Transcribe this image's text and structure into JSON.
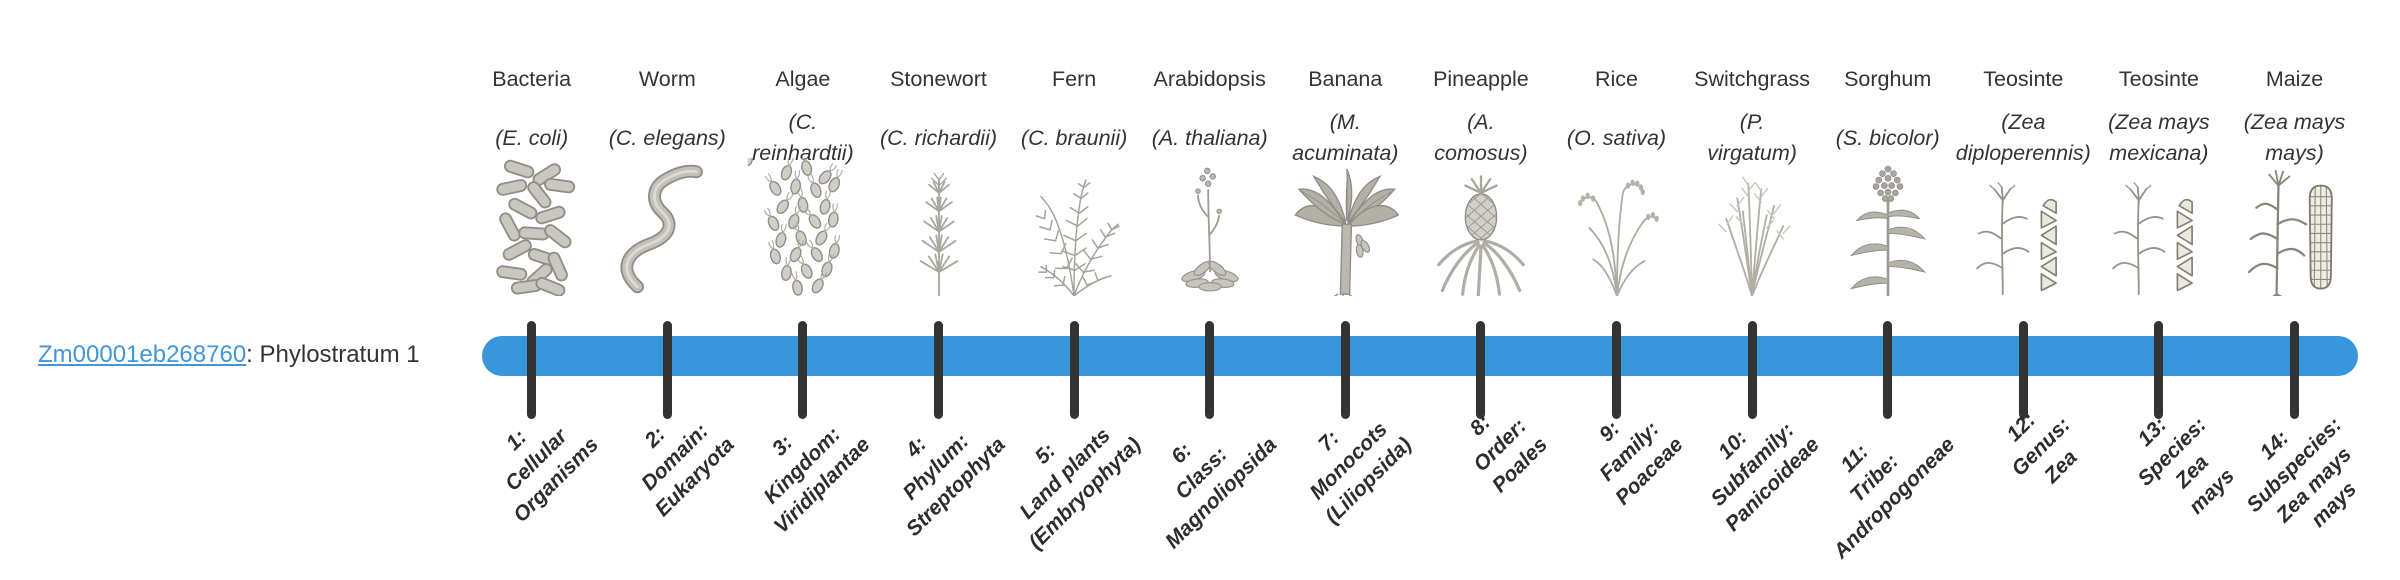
{
  "gene": {
    "id": "Zm00001eb268760",
    "suffix": ": Phylostratum 1"
  },
  "colors": {
    "bar_blue": "#3897db",
    "tick_dark": "#333333",
    "link_blue": "#4196d8",
    "text": "#333333"
  },
  "timeline": {
    "taxa": [
      {
        "common": "Bacteria",
        "sci": "(E. coli)",
        "rank_label": "1:\nCellular\nOrganisms",
        "icon": "bacteria"
      },
      {
        "common": "Worm",
        "sci": "(C. elegans)",
        "rank_label": "2:\nDomain:\nEukaryota",
        "icon": "worm"
      },
      {
        "common": "Algae",
        "sci": "(C.\nreinhardtii)",
        "rank_label": "3:\nKingdom:\nViridiplantae",
        "icon": "algae"
      },
      {
        "common": "Stonewort",
        "sci": "(C. richardii)",
        "rank_label": "4:\nPhylum:\nStreptophyta",
        "icon": "stonewort"
      },
      {
        "common": "Fern",
        "sci": "(C. braunii)",
        "rank_label": "5:\nLand plants\n(Embryophyta)",
        "icon": "fern"
      },
      {
        "common": "Arabidopsis",
        "sci": "(A. thaliana)",
        "rank_label": "6:\nClass:\nMagnoliopsida",
        "icon": "arabidopsis"
      },
      {
        "common": "Banana",
        "sci": "(M.\nacuminata)",
        "rank_label": "7:\nMonocots\n(Liliopsida)",
        "icon": "banana"
      },
      {
        "common": "Pineapple",
        "sci": "(A.\ncomosus)",
        "rank_label": "8:\nOrder:\nPoales",
        "icon": "pineapple"
      },
      {
        "common": "Rice",
        "sci": "(O. sativa)",
        "rank_label": "9:\nFamily:\nPoaceae",
        "icon": "rice"
      },
      {
        "common": "Switchgrass",
        "sci": "(P.\nvirgatum)",
        "rank_label": "10:\nSubfamily:\nPanicoideae",
        "icon": "switchgrass"
      },
      {
        "common": "Sorghum",
        "sci": "(S. bicolor)",
        "rank_label": "11:\nTribe:\nAndropogoneae",
        "icon": "sorghum"
      },
      {
        "common": "Teosinte",
        "sci": "(Zea\ndiploperennis)",
        "rank_label": "12:\nGenus:\nZea",
        "icon": "teosinte"
      },
      {
        "common": "Teosinte",
        "sci": "(Zea mays\nmexicana)",
        "rank_label": "13:\nSpecies:\nZea\nmays",
        "icon": "teosinte"
      },
      {
        "common": "Maize",
        "sci": "(Zea mays\nmays)",
        "rank_label": "14:\nSubspecies:\nZea mays\nmays",
        "icon": "maize"
      }
    ]
  }
}
